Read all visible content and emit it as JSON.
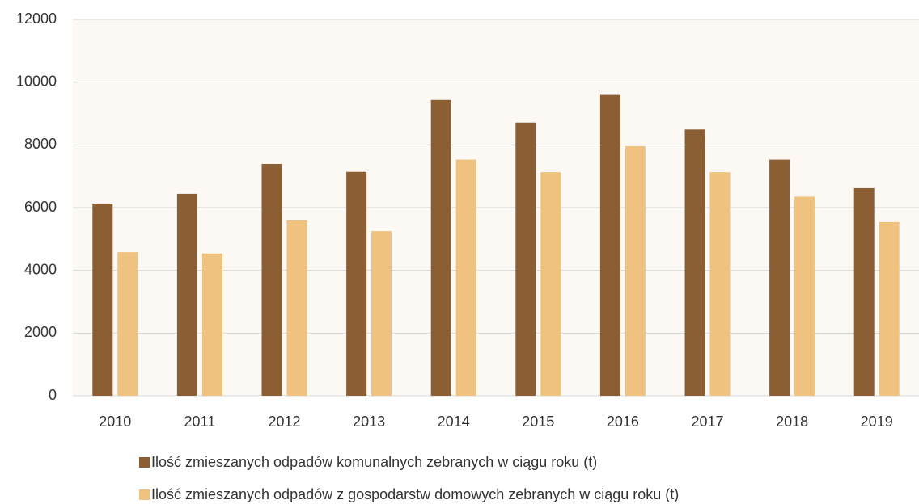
{
  "chart_data": {
    "type": "bar",
    "categories": [
      "2010",
      "2011",
      "2012",
      "2013",
      "2014",
      "2015",
      "2016",
      "2017",
      "2018",
      "2019"
    ],
    "series": [
      {
        "name": "Ilość zmieszanych odpadów komunalnych zebranych w ciągu roku (t)",
        "color": "#8b5e34",
        "values": [
          6130,
          6440,
          7390,
          7140,
          9430,
          8710,
          9590,
          8490,
          7530,
          6620
        ]
      },
      {
        "name": "Ilość zmieszanych odpadów z gospodarstw domowych zebranych w ciągu roku (t)",
        "color": "#f0c27f",
        "values": [
          4580,
          4540,
          5590,
          5250,
          7530,
          7130,
          7960,
          7130,
          6350,
          5540
        ]
      }
    ],
    "ylim": [
      0,
      12000
    ],
    "yticks": [
      0,
      2000,
      4000,
      6000,
      8000,
      10000,
      12000
    ],
    "grid": true,
    "legend": "bottom"
  }
}
